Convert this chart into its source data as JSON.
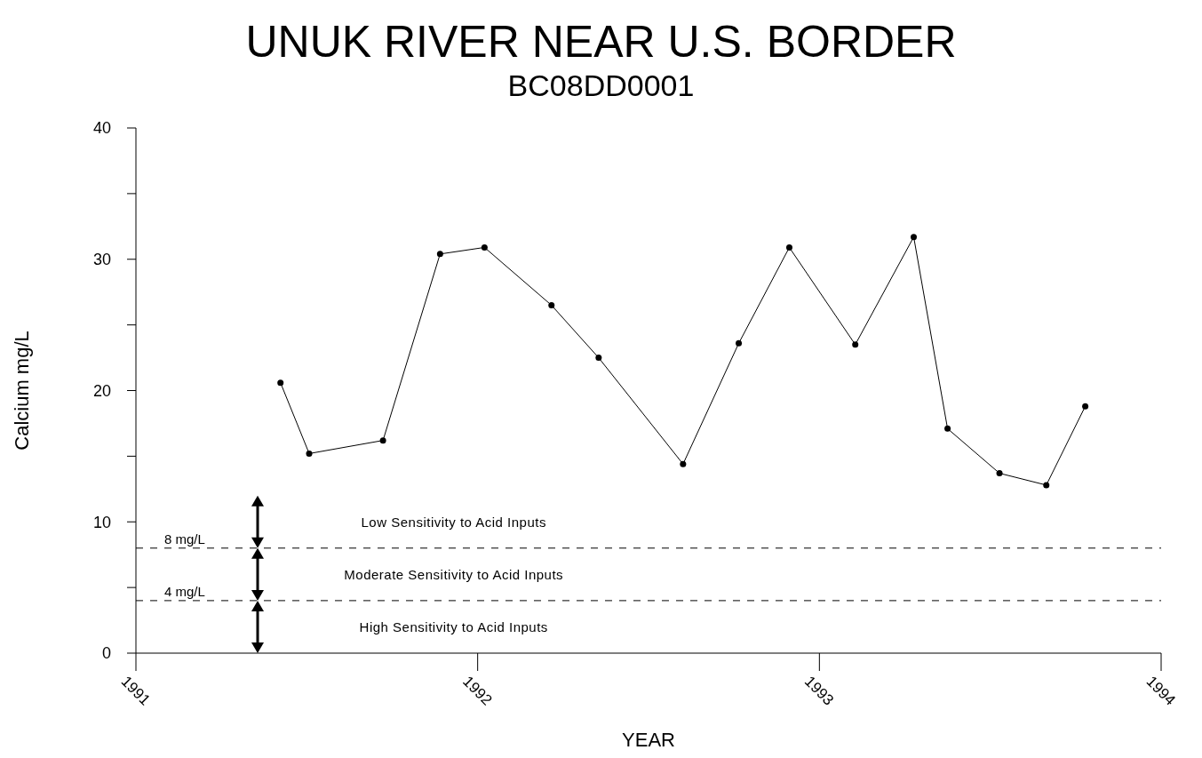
{
  "chart_data": {
    "type": "line",
    "title": "UNUK RIVER NEAR U.S. BORDER",
    "subtitle": "BC08DD0001",
    "xlabel": "YEAR",
    "ylabel": "Calcium mg/L",
    "x": [
      1991.423,
      1991.507,
      1991.723,
      1991.89,
      1992.02,
      1992.216,
      1992.354,
      1992.601,
      1992.764,
      1992.912,
      1993.105,
      1993.276,
      1993.375,
      1993.527,
      1993.664,
      1993.778
    ],
    "series": [
      {
        "color": "#000000",
        "values": [
          20.6,
          15.2,
          16.2,
          30.4,
          30.9,
          26.5,
          22.5,
          14.4,
          23.6,
          30.9,
          23.5,
          31.7,
          17.1,
          13.7,
          12.8,
          18.8
        ]
      }
    ],
    "xlim": [
      1991,
      1994
    ],
    "xticks": [
      1991,
      1992,
      1993,
      1994
    ],
    "ylim": [
      0,
      40
    ],
    "yticks": [
      0,
      {
        "value": 5,
        "label": null
      },
      10,
      {
        "value": 15,
        "label": null
      },
      20,
      {
        "value": 25,
        "label": null
      },
      30,
      {
        "value": 35,
        "label": null
      },
      40
    ],
    "ref_lines": [
      {
        "axis": "y",
        "value": 8,
        "label": "8 mg/L",
        "color": "#000000",
        "line_style": "dashed"
      },
      {
        "axis": "y",
        "value": 4,
        "label": "4 mg/L",
        "color": "#000000",
        "line_style": "dashed"
      }
    ],
    "annotations": [
      "Low Sensitivity to Acid Inputs",
      "Moderate Sensitivity to Acid Inputs",
      "High Sensitivity to Acid Inputs"
    ],
    "marker": "circle",
    "line_style": "solid",
    "grid": false
  }
}
